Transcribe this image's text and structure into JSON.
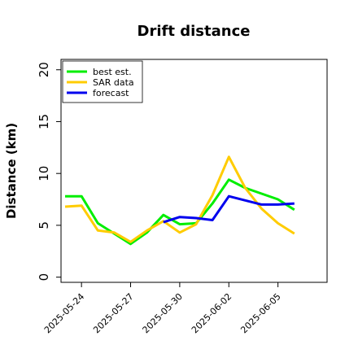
{
  "chart_data": {
    "type": "line",
    "title": "Drift distance",
    "xlabel": "",
    "ylabel": "Distance (km)",
    "xlim": [
      "2025-05-22T18:00",
      "2025-06-08T00:00"
    ],
    "ylim": [
      -0.5,
      21
    ],
    "yticks": [
      0,
      5,
      10,
      15,
      20
    ],
    "xticks": [
      "2025-05-24",
      "2025-05-27",
      "2025-05-30",
      "2025-06-02",
      "2025-06-05"
    ],
    "grid": false,
    "legend_position": "top-left",
    "series": [
      {
        "name": "best est.",
        "color": "#00ee00",
        "points": [
          [
            "2025-05-23T00:00",
            7.8
          ],
          [
            "2025-05-24T00:00",
            7.8
          ],
          [
            "2025-05-25T00:00",
            5.2
          ],
          [
            "2025-05-27T00:00",
            3.2
          ],
          [
            "2025-05-28T00:00",
            4.3
          ],
          [
            "2025-05-29T00:00",
            6.0
          ],
          [
            "2025-05-30T00:00",
            5.1
          ],
          [
            "2025-05-31T00:00",
            5.2
          ],
          [
            "2025-06-01T00:00",
            7.1
          ],
          [
            "2025-06-02T00:00",
            9.4
          ],
          [
            "2025-06-03T00:00",
            8.6
          ],
          [
            "2025-06-05T00:00",
            7.5
          ],
          [
            "2025-06-06T00:00",
            6.5
          ]
        ]
      },
      {
        "name": "SAR data",
        "color": "#ffcc00",
        "points": [
          [
            "2025-05-23T00:00",
            6.8
          ],
          [
            "2025-05-24T00:00",
            6.9
          ],
          [
            "2025-05-25T00:00",
            4.5
          ],
          [
            "2025-05-26T00:00",
            4.3
          ],
          [
            "2025-05-27T00:00",
            3.4
          ],
          [
            "2025-05-28T00:00",
            4.5
          ],
          [
            "2025-05-29T00:00",
            5.4
          ],
          [
            "2025-05-30T00:00",
            4.3
          ],
          [
            "2025-05-31T00:00",
            5.1
          ],
          [
            "2025-06-01T00:00",
            7.9
          ],
          [
            "2025-06-02T00:00",
            11.6
          ],
          [
            "2025-06-03T00:00",
            8.6
          ],
          [
            "2025-06-04T00:00",
            6.6
          ],
          [
            "2025-06-05T00:00",
            5.2
          ],
          [
            "2025-06-06T00:00",
            4.2
          ]
        ]
      },
      {
        "name": "forecast",
        "color": "#0000ee",
        "points": [
          [
            "2025-05-29T00:00",
            5.3
          ],
          [
            "2025-05-30T00:00",
            5.8
          ],
          [
            "2025-05-31T00:00",
            5.7
          ],
          [
            "2025-06-01T00:00",
            5.5
          ],
          [
            "2025-06-02T00:00",
            7.8
          ],
          [
            "2025-06-03T00:00",
            7.4
          ],
          [
            "2025-06-04T00:00",
            7.0
          ],
          [
            "2025-06-05T00:00",
            7.0
          ],
          [
            "2025-06-06T00:00",
            7.1
          ]
        ]
      }
    ]
  }
}
